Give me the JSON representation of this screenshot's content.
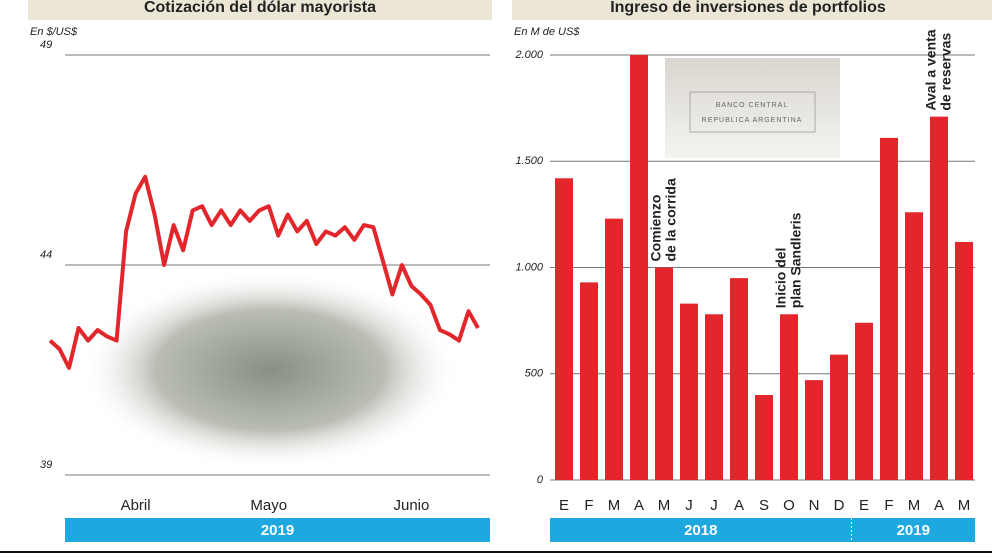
{
  "chart_data": [
    {
      "type": "line",
      "title": "Cotización del dólar mayorista",
      "y_label": "En $/US$",
      "categories": [
        null,
        null,
        null,
        null,
        null,
        null,
        null,
        null,
        null,
        "Abril",
        null,
        null,
        null,
        null,
        null,
        null,
        null,
        null,
        null,
        null,
        null,
        null,
        null,
        "Mayo",
        null,
        null,
        null,
        null,
        null,
        null,
        null,
        null,
        null,
        null,
        null,
        null,
        null,
        null,
        "Junio",
        null,
        null,
        null,
        null,
        null,
        null,
        null
      ],
      "values": [
        42.2,
        42.0,
        41.55,
        42.5,
        42.2,
        42.45,
        42.3,
        42.2,
        44.8,
        45.7,
        46.1,
        45.2,
        44.0,
        44.95,
        44.35,
        45.3,
        45.4,
        44.95,
        45.3,
        44.95,
        45.3,
        45.05,
        45.3,
        45.4,
        44.7,
        45.2,
        44.8,
        45.05,
        44.5,
        44.8,
        44.7,
        44.9,
        44.6,
        44.95,
        44.9,
        44.1,
        43.3,
        44.0,
        43.5,
        43.3,
        43.05,
        42.45,
        42.35,
        42.2,
        42.9,
        42.5
      ],
      "color": "#e3262c",
      "ylim": [
        39,
        49
      ],
      "yticks": [
        39,
        44,
        49
      ],
      "grid": true,
      "x_groups": [
        "2019"
      ]
    },
    {
      "type": "bar",
      "title": "Ingreso de inversiones de portfolios",
      "y_label": "En M de US$",
      "categories": [
        "E",
        "F",
        "M",
        "A",
        "M",
        "J",
        "J",
        "A",
        "S",
        "O",
        "N",
        "D",
        "E",
        "F",
        "M",
        "A",
        "M"
      ],
      "values": [
        1420,
        930,
        1230,
        2000,
        1000,
        830,
        780,
        950,
        400,
        780,
        470,
        590,
        740,
        1610,
        1260,
        1710,
        1120
      ],
      "color": "#e3262c",
      "ylim": [
        0,
        2000
      ],
      "yticks": [
        0,
        500,
        {
          "value": 1000,
          "label": "1.000"
        },
        {
          "value": 1500,
          "label": "1.500"
        },
        {
          "value": 2000,
          "label": "2.000"
        }
      ],
      "grid": true,
      "x_groups": [
        "2018",
        "2019"
      ],
      "annotations": [
        [
          "Comienzo",
          "de la corrida"
        ],
        [
          "Inicio del",
          "plan Sandleris"
        ],
        [
          "Aval a venta",
          "de reservas"
        ]
      ],
      "image_text": [
        "BANCO CENTRAL",
        "REPUBLICA ARGENTINA"
      ]
    }
  ]
}
